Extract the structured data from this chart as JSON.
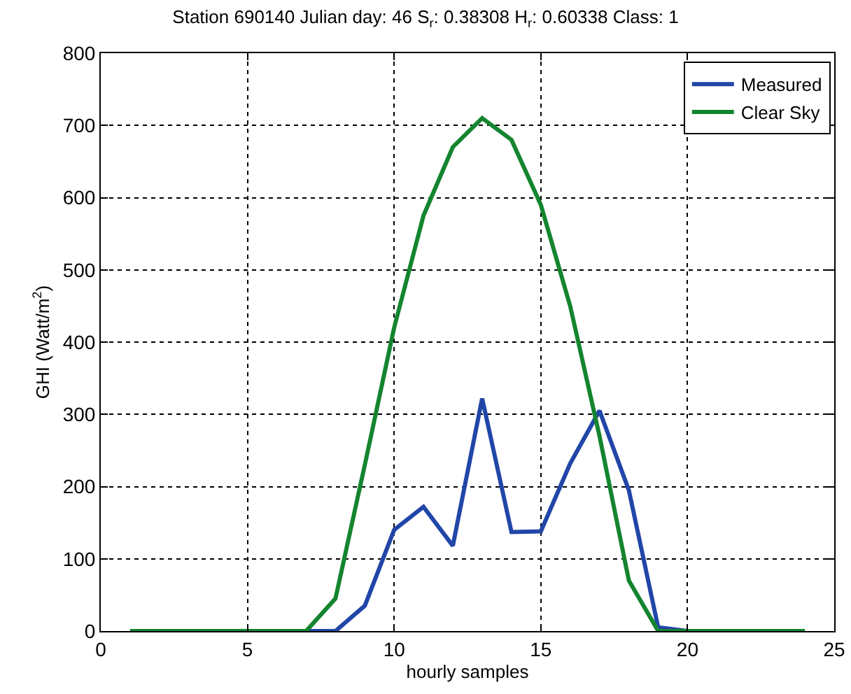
{
  "chart_data": {
    "type": "line",
    "title": "Station 690140 Julian day: 46 S$_{r}$: 0.38308 H$_{r}$: 0.60338 Class: 1",
    "xlabel": "hourly samples",
    "ylabel": "GHI (Watt/m$^{2}$)",
    "x": [
      1,
      2,
      3,
      4,
      5,
      6,
      7,
      8,
      9,
      10,
      11,
      12,
      13,
      14,
      15,
      16,
      17,
      18,
      19,
      20,
      21,
      22,
      23,
      24
    ],
    "series": [
      {
        "name": "Measured",
        "color": "#2146a8",
        "values": [
          null,
          null,
          null,
          null,
          null,
          0,
          0,
          0,
          35,
          140,
          172,
          118,
          322,
          137,
          138,
          232,
          305,
          195,
          5,
          0,
          0,
          null,
          null,
          null
        ]
      },
      {
        "name": "Clear Sky",
        "color": "#14852f",
        "values": [
          0,
          0,
          0,
          0,
          0,
          0,
          0,
          45,
          230,
          420,
          575,
          670,
          710,
          680,
          590,
          450,
          270,
          70,
          0,
          0,
          0,
          0,
          0,
          0
        ]
      }
    ],
    "xlim": [
      0,
      25
    ],
    "xticks": [
      0,
      5,
      10,
      15,
      20,
      25
    ],
    "ylim": [
      0,
      800
    ],
    "yticks": [
      0,
      100,
      200,
      300,
      400,
      500,
      600,
      700,
      800
    ],
    "grid": true,
    "legend": "top right",
    "line_style": "solid",
    "marker": "none"
  }
}
